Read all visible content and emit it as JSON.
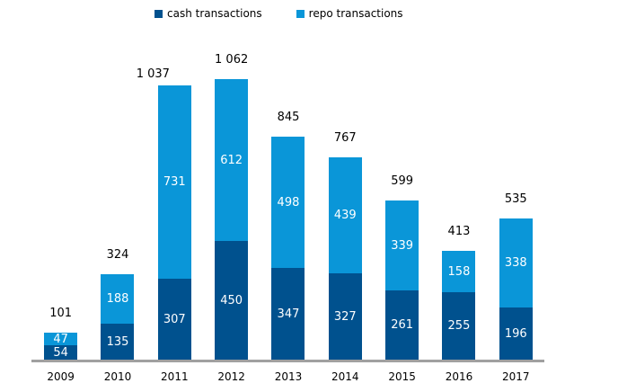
{
  "chart_data": {
    "type": "bar",
    "stacked": true,
    "title": "",
    "categories": [
      "2009",
      "2010",
      "2011",
      "2012",
      "2013",
      "2014",
      "2015",
      "2016",
      "2017"
    ],
    "series": [
      {
        "name": "cash transactions",
        "color": "#00518E",
        "values": [
          54,
          135,
          307,
          450,
          347,
          327,
          261,
          255,
          196
        ]
      },
      {
        "name": "repo transactions",
        "color": "#0A96D8",
        "values": [
          47,
          188,
          731,
          612,
          498,
          439,
          339,
          158,
          338
        ]
      }
    ],
    "total_labels": [
      "101",
      "324",
      "1 037",
      "1 062",
      "845",
      "767",
      "599",
      "413",
      "535"
    ],
    "ylim": [
      0,
      1100
    ],
    "grid": false,
    "legend_position": "top",
    "value_label_color": "#ffffff",
    "axis_line_color": "#a0a0a0"
  }
}
